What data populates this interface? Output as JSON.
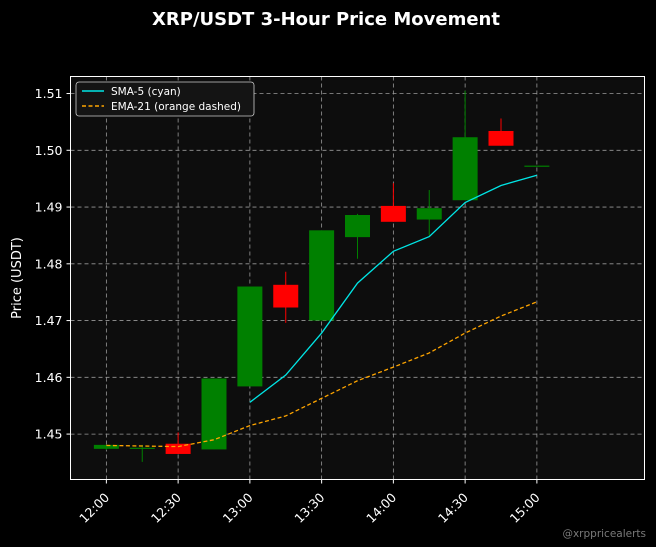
{
  "chart_data": {
    "type": "candlestick",
    "title": "XRP/USDT 3-Hour Price Movement",
    "xlabel": "",
    "ylabel": "Price (USDT)",
    "ylim": [
      1.442,
      1.513
    ],
    "xlim": [
      "11:45",
      "15:45"
    ],
    "yticks": [
      "1.45",
      "1.46",
      "1.47",
      "1.48",
      "1.49",
      "1.50",
      "1.51"
    ],
    "xticks": [
      "12:00",
      "12:30",
      "13:00",
      "13:30",
      "14:00",
      "14:30",
      "15:00"
    ],
    "grid": true,
    "legend_position": "top-left",
    "colors": {
      "background": "#000000",
      "plot_background": "#0d0d0d",
      "up": "#008000",
      "down": "#ff0000",
      "sma": "#00e5e5",
      "ema": "#ffa500",
      "grid": "#999999"
    },
    "candles": [
      {
        "time": "12:00",
        "open": 1.4474,
        "high": 1.4481,
        "low": 1.4472,
        "close": 1.4481
      },
      {
        "time": "12:15",
        "open": 1.4474,
        "high": 1.4481,
        "low": 1.4451,
        "close": 1.4476
      },
      {
        "time": "12:30",
        "open": 1.4483,
        "high": 1.4503,
        "low": 1.4465,
        "close": 1.4465
      },
      {
        "time": "12:45",
        "open": 1.4473,
        "high": 1.4598,
        "low": 1.4473,
        "close": 1.4598
      },
      {
        "time": "13:00",
        "open": 1.4584,
        "high": 1.476,
        "low": 1.4584,
        "close": 1.476
      },
      {
        "time": "13:15",
        "open": 1.4763,
        "high": 1.4786,
        "low": 1.4696,
        "close": 1.4723
      },
      {
        "time": "13:30",
        "open": 1.47,
        "high": 1.4859,
        "low": 1.47,
        "close": 1.4859
      },
      {
        "time": "13:45",
        "open": 1.4847,
        "high": 1.4888,
        "low": 1.4809,
        "close": 1.4886
      },
      {
        "time": "14:00",
        "open": 1.4902,
        "high": 1.4942,
        "low": 1.4874,
        "close": 1.4874
      },
      {
        "time": "14:15",
        "open": 1.4878,
        "high": 1.493,
        "low": 1.485,
        "close": 1.4898
      },
      {
        "time": "14:30",
        "open": 1.4912,
        "high": 1.5105,
        "low": 1.4912,
        "close": 1.5023
      },
      {
        "time": "14:45",
        "open": 1.5034,
        "high": 1.5056,
        "low": 1.5008,
        "close": 1.5008
      },
      {
        "time": "15:00",
        "open": 1.4973,
        "high": 1.4973,
        "low": 1.4973,
        "close": 1.4973
      }
    ],
    "series": [
      {
        "name": "SMA-5 (cyan)",
        "style": "solid",
        "points": [
          [
            "13:00",
            1.4556
          ],
          [
            "13:15",
            1.4604
          ],
          [
            "13:30",
            1.4678
          ],
          [
            "13:45",
            1.4766
          ],
          [
            "14:00",
            1.4822
          ],
          [
            "14:15",
            1.4848
          ],
          [
            "14:30",
            1.4908
          ],
          [
            "14:45",
            1.4938
          ],
          [
            "15:00",
            1.4956
          ]
        ]
      },
      {
        "name": "EMA-21 (orange dashed)",
        "style": "dashed",
        "points": [
          [
            "12:00",
            1.448
          ],
          [
            "12:15",
            1.4479
          ],
          [
            "12:30",
            1.4478
          ],
          [
            "12:45",
            1.449
          ],
          [
            "13:00",
            1.4515
          ],
          [
            "13:15",
            1.4532
          ],
          [
            "13:30",
            1.4563
          ],
          [
            "13:45",
            1.4594
          ],
          [
            "14:00",
            1.4618
          ],
          [
            "14:15",
            1.4643
          ],
          [
            "14:30",
            1.4678
          ],
          [
            "14:45",
            1.4708
          ],
          [
            "15:00",
            1.4733
          ]
        ]
      }
    ]
  },
  "watermark": "@xrppricealerts"
}
